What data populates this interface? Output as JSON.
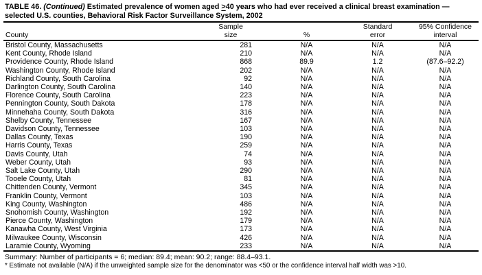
{
  "colors": {
    "text": "#000000",
    "background": "#ffffff",
    "rule": "#000000"
  },
  "title": {
    "prefix": "TABLE 46.",
    "continued": "(Continued)",
    "line1_rest": "Estimated prevalence of women aged",
    "geq": ">",
    "line1_end": "40 years who had ever received a clinical breast examination —",
    "line2": "selected U.S. counties, Behavioral Risk Factor Surveillance System, 2002"
  },
  "table": {
    "columns": {
      "county": "County",
      "sample_line1": "Sample",
      "sample_line2": "size",
      "pct": "%",
      "stderr_line1": "Standard",
      "stderr_line2": "error",
      "ci_line1": "95% Confidence",
      "ci_line2": "interval"
    },
    "rows": [
      {
        "county": "Bristol County, Massachusetts",
        "sample_size": "281",
        "pct": "N/A",
        "std_error": "N/A",
        "ci": "N/A"
      },
      {
        "county": "Kent County, Rhode Island",
        "sample_size": "210",
        "pct": "N/A",
        "std_error": "N/A",
        "ci": "N/A"
      },
      {
        "county": "Providence County, Rhode Island",
        "sample_size": "868",
        "pct": "89.9",
        "std_error": "1.2",
        "ci": "(87.6–92.2)"
      },
      {
        "county": "Washington County, Rhode Island",
        "sample_size": "202",
        "pct": "N/A",
        "std_error": "N/A",
        "ci": "N/A"
      },
      {
        "county": "Richland County, South Carolina",
        "sample_size": "92",
        "pct": "N/A",
        "std_error": "N/A",
        "ci": "N/A"
      },
      {
        "county": "Darlington County, South Carolina",
        "sample_size": "140",
        "pct": "N/A",
        "std_error": "N/A",
        "ci": "N/A"
      },
      {
        "county": "Florence County, South Carolina",
        "sample_size": "223",
        "pct": "N/A",
        "std_error": "N/A",
        "ci": "N/A"
      },
      {
        "county": "Pennington County, South Dakota",
        "sample_size": "178",
        "pct": "N/A",
        "std_error": "N/A",
        "ci": "N/A"
      },
      {
        "county": "Minnehaha County, South Dakota",
        "sample_size": "316",
        "pct": "N/A",
        "std_error": "N/A",
        "ci": "N/A"
      },
      {
        "county": "Shelby County, Tennessee",
        "sample_size": "167",
        "pct": "N/A",
        "std_error": "N/A",
        "ci": "N/A"
      },
      {
        "county": "Davidson County, Tennessee",
        "sample_size": "103",
        "pct": "N/A",
        "std_error": "N/A",
        "ci": "N/A"
      },
      {
        "county": "Dallas County, Texas",
        "sample_size": "190",
        "pct": "N/A",
        "std_error": "N/A",
        "ci": "N/A"
      },
      {
        "county": "Harris County, Texas",
        "sample_size": "259",
        "pct": "N/A",
        "std_error": "N/A",
        "ci": "N/A"
      },
      {
        "county": "Davis County, Utah",
        "sample_size": "74",
        "pct": "N/A",
        "std_error": "N/A",
        "ci": "N/A"
      },
      {
        "county": "Weber County, Utah",
        "sample_size": "93",
        "pct": "N/A",
        "std_error": "N/A",
        "ci": "N/A"
      },
      {
        "county": "Salt Lake County, Utah",
        "sample_size": "290",
        "pct": "N/A",
        "std_error": "N/A",
        "ci": "N/A"
      },
      {
        "county": "Tooele County, Utah",
        "sample_size": "81",
        "pct": "N/A",
        "std_error": "N/A",
        "ci": "N/A"
      },
      {
        "county": "Chittenden County, Vermont",
        "sample_size": "345",
        "pct": "N/A",
        "std_error": "N/A",
        "ci": "N/A"
      },
      {
        "county": "Franklin County, Vermont",
        "sample_size": "103",
        "pct": "N/A",
        "std_error": "N/A",
        "ci": "N/A"
      },
      {
        "county": "King County, Washington",
        "sample_size": "486",
        "pct": "N/A",
        "std_error": "N/A",
        "ci": "N/A"
      },
      {
        "county": "Snohomish County, Washington",
        "sample_size": "192",
        "pct": "N/A",
        "std_error": "N/A",
        "ci": "N/A"
      },
      {
        "county": "Pierce County, Washington",
        "sample_size": "179",
        "pct": "N/A",
        "std_error": "N/A",
        "ci": "N/A"
      },
      {
        "county": "Kanawha County, West Virginia",
        "sample_size": "173",
        "pct": "N/A",
        "std_error": "N/A",
        "ci": "N/A"
      },
      {
        "county": "Milwaukee County, Wisconsin",
        "sample_size": "426",
        "pct": "N/A",
        "std_error": "N/A",
        "ci": "N/A"
      },
      {
        "county": "Laramie County, Wyoming",
        "sample_size": "233",
        "pct": "N/A",
        "std_error": "N/A",
        "ci": "N/A"
      }
    ]
  },
  "summary": "Summary: Number of participants = 6; median: 89.4; mean: 90.2; range: 88.4–93.1.",
  "footnote": "* Estimate not available (N/A) if the unweighted sample size for the denominator was <50 or the confidence interval half width was >10."
}
